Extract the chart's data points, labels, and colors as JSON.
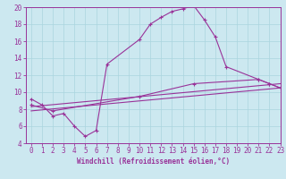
{
  "background_color": "#cce8f0",
  "grid_color": "#aad4de",
  "line_color": "#993399",
  "xlabel": "Windchill (Refroidissement éolien,°C)",
  "xlim": [
    -0.5,
    23
  ],
  "ylim": [
    4,
    20
  ],
  "yticks": [
    4,
    6,
    8,
    10,
    12,
    14,
    16,
    18,
    20
  ],
  "xticks": [
    0,
    1,
    2,
    3,
    4,
    5,
    6,
    7,
    8,
    9,
    10,
    11,
    12,
    13,
    14,
    15,
    16,
    17,
    18,
    19,
    20,
    21,
    22,
    23
  ],
  "curve1_x": [
    0,
    1,
    2,
    3,
    4,
    5,
    6,
    7,
    10,
    11,
    12,
    13,
    14,
    15,
    16,
    17,
    18,
    21,
    22,
    23
  ],
  "curve1_y": [
    9.2,
    8.5,
    7.2,
    7.5,
    6.0,
    4.8,
    5.5,
    13.3,
    16.2,
    18.0,
    18.8,
    19.5,
    19.8,
    20.2,
    18.5,
    16.5,
    13.0,
    11.5,
    11.0,
    10.5
  ],
  "curve2_x": [
    0,
    2,
    10,
    15,
    21,
    22,
    23
  ],
  "curve2_y": [
    8.5,
    7.8,
    9.5,
    11.0,
    11.5,
    11.0,
    10.5
  ],
  "line3_x": [
    0,
    23
  ],
  "line3_y": [
    7.8,
    10.5
  ],
  "line4_x": [
    0,
    23
  ],
  "line4_y": [
    8.3,
    11.0
  ],
  "tick_fontsize": 5.5,
  "xlabel_fontsize": 5.5
}
